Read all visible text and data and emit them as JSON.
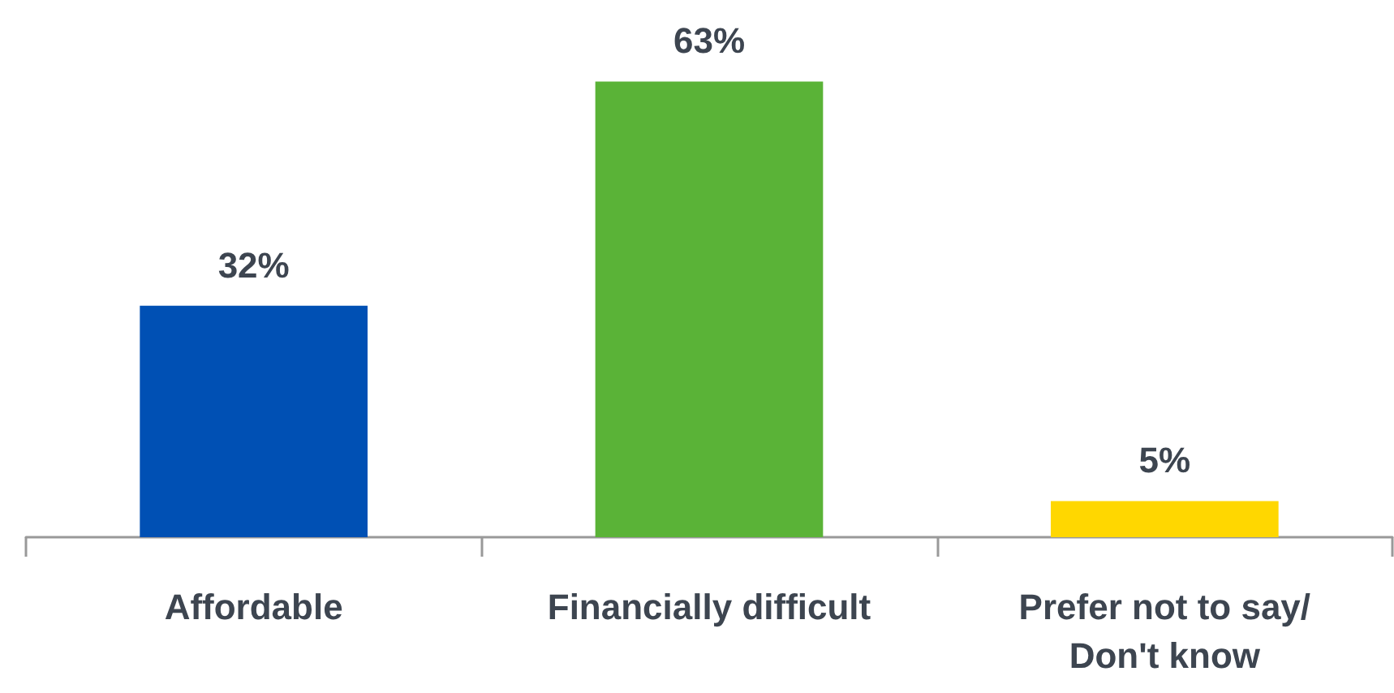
{
  "chart_data": {
    "type": "bar",
    "categories": [
      "Affordable",
      "Financially difficult",
      "Prefer not to say/Don't know"
    ],
    "values": [
      32,
      63,
      5
    ],
    "colors": [
      "#0050b4",
      "#5ab337",
      "#ffd700"
    ],
    "value_labels": [
      "32%",
      "63%",
      "5%"
    ]
  }
}
